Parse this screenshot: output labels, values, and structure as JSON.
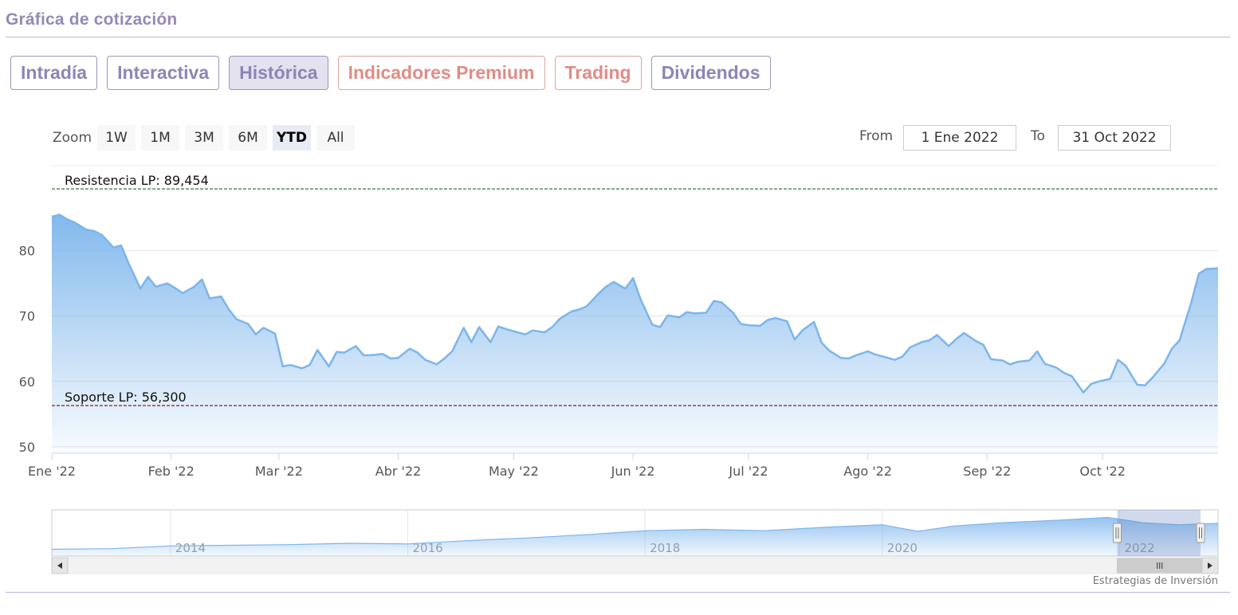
{
  "header": {
    "title": "Gráfica de cotización"
  },
  "tabs": [
    {
      "label": "Intradía",
      "active": false,
      "premium": false
    },
    {
      "label": "Interactiva",
      "active": false,
      "premium": false
    },
    {
      "label": "Histórica",
      "active": true,
      "premium": false
    },
    {
      "label": "Indicadores Premium",
      "active": false,
      "premium": true
    },
    {
      "label": "Trading",
      "active": false,
      "premium": true
    },
    {
      "label": "Dividendos",
      "active": false,
      "premium": false
    }
  ],
  "zoom": {
    "label": "Zoom",
    "options": [
      "1W",
      "1M",
      "3M",
      "6M",
      "YTD",
      "All"
    ],
    "selected": "YTD"
  },
  "range": {
    "from_label": "From",
    "from_value": "1 Ene 2022",
    "to_label": "To",
    "to_value": "31 Oct 2022"
  },
  "credits": "Estrategias de Inversión",
  "colors": {
    "line": "#7cb5ec",
    "resistance": "#2e7d32",
    "support": "#8b1a2b",
    "accent": "#9489b7",
    "premium": "#e08c86"
  },
  "chart_data": {
    "type": "area",
    "title": "",
    "xlabel": "",
    "ylabel": "",
    "ylim": [
      49,
      93
    ],
    "yticks": [
      50,
      60,
      70,
      80
    ],
    "grid": true,
    "legend": "none",
    "x_range": [
      "2022-01-01",
      "2022-10-31"
    ],
    "x_ticks": [
      {
        "date": "2022-01-01",
        "label": "Ene '22"
      },
      {
        "date": "2022-02-01",
        "label": "Feb '22"
      },
      {
        "date": "2022-03-01",
        "label": "Mar '22"
      },
      {
        "date": "2022-04-01",
        "label": "Abr '22"
      },
      {
        "date": "2022-05-01",
        "label": "May '22"
      },
      {
        "date": "2022-06-01",
        "label": "Jun '22"
      },
      {
        "date": "2022-07-01",
        "label": "Jul '22"
      },
      {
        "date": "2022-08-01",
        "label": "Ago '22"
      },
      {
        "date": "2022-09-01",
        "label": "Sep '22"
      },
      {
        "date": "2022-10-01",
        "label": "Oct '22"
      }
    ],
    "series": [
      {
        "x": [
          "2022-01-01",
          "2022-01-03",
          "2022-01-05",
          "2022-01-07",
          "2022-01-10",
          "2022-01-12",
          "2022-01-14",
          "2022-01-17",
          "2022-01-19",
          "2022-01-21",
          "2022-01-24",
          "2022-01-26",
          "2022-01-28",
          "2022-01-31",
          "2022-02-02",
          "2022-02-04",
          "2022-02-07",
          "2022-02-09",
          "2022-02-11",
          "2022-02-14",
          "2022-02-16",
          "2022-02-18",
          "2022-02-21",
          "2022-02-23",
          "2022-02-25",
          "2022-02-28",
          "2022-03-02",
          "2022-03-04",
          "2022-03-07",
          "2022-03-09",
          "2022-03-11",
          "2022-03-14",
          "2022-03-16",
          "2022-03-18",
          "2022-03-21",
          "2022-03-23",
          "2022-03-25",
          "2022-03-28",
          "2022-03-30",
          "2022-04-01",
          "2022-04-04",
          "2022-04-06",
          "2022-04-08",
          "2022-04-11",
          "2022-04-13",
          "2022-04-15",
          "2022-04-18",
          "2022-04-20",
          "2022-04-22",
          "2022-04-25",
          "2022-04-27",
          "2022-04-29",
          "2022-05-02",
          "2022-05-04",
          "2022-05-06",
          "2022-05-09",
          "2022-05-11",
          "2022-05-13",
          "2022-05-16",
          "2022-05-18",
          "2022-05-20",
          "2022-05-23",
          "2022-05-25",
          "2022-05-27",
          "2022-05-30",
          "2022-06-01",
          "2022-06-03",
          "2022-06-06",
          "2022-06-08",
          "2022-06-10",
          "2022-06-13",
          "2022-06-15",
          "2022-06-17",
          "2022-06-20",
          "2022-06-22",
          "2022-06-24",
          "2022-06-27",
          "2022-06-29",
          "2022-07-01",
          "2022-07-04",
          "2022-07-06",
          "2022-07-08",
          "2022-07-11",
          "2022-07-13",
          "2022-07-15",
          "2022-07-18",
          "2022-07-20",
          "2022-07-22",
          "2022-07-25",
          "2022-07-27",
          "2022-07-29",
          "2022-08-01",
          "2022-08-03",
          "2022-08-05",
          "2022-08-08",
          "2022-08-10",
          "2022-08-12",
          "2022-08-15",
          "2022-08-17",
          "2022-08-19",
          "2022-08-22",
          "2022-08-24",
          "2022-08-26",
          "2022-08-29",
          "2022-08-31",
          "2022-09-02",
          "2022-09-05",
          "2022-09-07",
          "2022-09-09",
          "2022-09-12",
          "2022-09-14",
          "2022-09-16",
          "2022-09-19",
          "2022-09-21",
          "2022-09-23",
          "2022-09-26",
          "2022-09-28",
          "2022-09-30",
          "2022-10-03",
          "2022-10-05",
          "2022-10-07",
          "2022-10-10",
          "2022-10-12",
          "2022-10-14",
          "2022-10-17",
          "2022-10-19",
          "2022-10-21",
          "2022-10-24",
          "2022-10-26",
          "2022-10-28",
          "2022-10-31"
        ],
        "y": [
          85.2,
          85.5,
          84.8,
          84.3,
          83.2,
          83.0,
          82.4,
          80.5,
          80.8,
          78.0,
          74.2,
          76.0,
          74.5,
          75.0,
          74.3,
          73.5,
          74.5,
          75.6,
          72.7,
          73.0,
          71.0,
          69.5,
          68.8,
          67.2,
          68.2,
          67.3,
          62.3,
          62.5,
          62.0,
          62.5,
          64.8,
          62.3,
          64.5,
          64.4,
          65.4,
          64.0,
          64.0,
          64.2,
          63.5,
          63.6,
          65.0,
          64.4,
          63.3,
          62.6,
          63.5,
          64.6,
          68.2,
          66.0,
          68.3,
          66.0,
          68.4,
          68.0,
          67.5,
          67.2,
          67.8,
          67.5,
          68.3,
          69.6,
          70.7,
          71.0,
          71.5,
          73.4,
          74.5,
          75.2,
          74.2,
          75.8,
          72.5,
          68.7,
          68.3,
          70.1,
          69.8,
          70.6,
          70.4,
          70.5,
          72.3,
          72.1,
          70.5,
          68.8,
          68.6,
          68.5,
          69.4,
          69.7,
          69.2,
          66.4,
          67.8,
          69.1,
          65.9,
          64.7,
          63.6,
          63.5,
          64.0,
          64.6,
          64.1,
          63.8,
          63.3,
          63.8,
          65.2,
          66.0,
          66.3,
          67.1,
          65.4,
          66.5,
          67.4,
          66.2,
          65.6,
          63.4,
          63.2,
          62.6,
          63.0,
          63.2,
          64.6,
          62.7,
          62.1,
          61.3,
          60.8,
          58.3,
          59.6,
          60.0,
          60.4,
          63.3,
          62.4,
          59.5,
          59.4,
          60.6,
          62.7,
          65.0,
          66.3,
          72.0,
          76.5,
          77.2,
          77.3
        ]
      }
    ],
    "reference_lines": [
      {
        "label": "Resistencia LP: 89,454",
        "value": 89.454,
        "color": "#2e7d32"
      },
      {
        "label": "Soporte LP: 56,300",
        "value": 56.3,
        "color": "#8b1a2b"
      }
    ],
    "navigator": {
      "x_ticks": [
        "2014",
        "2016",
        "2018",
        "2020",
        "2022"
      ],
      "series_x": [
        2013.0,
        2013.5,
        2014.0,
        2014.5,
        2015.0,
        2015.5,
        2016.0,
        2016.5,
        2017.0,
        2017.5,
        2018.0,
        2018.5,
        2019.0,
        2019.5,
        2020.0,
        2020.3,
        2020.6,
        2021.0,
        2021.5,
        2021.9,
        2022.2,
        2022.5,
        2022.83
      ],
      "series_y": [
        3,
        4,
        8,
        9,
        10,
        12,
        11,
        16,
        20,
        25,
        31,
        33,
        31,
        36,
        40,
        30,
        38,
        43,
        47,
        51,
        43,
        40,
        42
      ],
      "selected_range": [
        2022.0,
        2022.83
      ]
    }
  }
}
